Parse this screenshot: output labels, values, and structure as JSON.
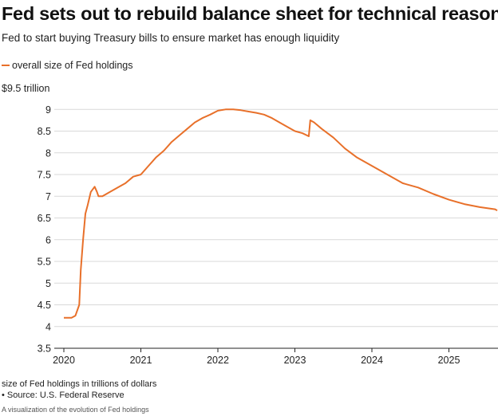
{
  "title": "Fed sets out to rebuild balance sheet for technical reasons",
  "subtitle": "Fed to start buying Treasury bills to ensure market has enough liquidity",
  "legend_label": "overall size of Fed holdings",
  "y_top_label": "$9.5 trillion",
  "note": "size of Fed holdings in trillions of dollars",
  "source": "• Source: U.S. Federal Reserve",
  "caption": "A visualization of the evolution of Fed holdings",
  "colors": {
    "series": "#e8702a",
    "grid": "#d9d9d9",
    "axis": "#222222"
  },
  "chart_data": {
    "type": "line",
    "title": "Fed sets out to rebuild balance sheet for technical reasons",
    "ylabel": "size of Fed holdings in trillions of dollars",
    "ylim": [
      3.5,
      9.5
    ],
    "xlim": [
      2019.95,
      2025.75
    ],
    "yticks": [
      "3.5",
      "4",
      "4.5",
      "5",
      "5.5",
      "6",
      "6.5",
      "7",
      "7.5",
      "8",
      "8.5",
      "9"
    ],
    "xticks": [
      "2020",
      "2021",
      "2022",
      "2023",
      "2024",
      "2025"
    ],
    "series": [
      {
        "name": "overall size of Fed holdings",
        "x": [
          2020.0,
          2020.1,
          2020.15,
          2020.2,
          2020.22,
          2020.25,
          2020.28,
          2020.31,
          2020.35,
          2020.4,
          2020.43,
          2020.45,
          2020.5,
          2020.55,
          2020.6,
          2020.7,
          2020.8,
          2020.9,
          2021.0,
          2021.1,
          2021.2,
          2021.3,
          2021.4,
          2021.5,
          2021.6,
          2021.7,
          2021.8,
          2021.9,
          2022.0,
          2022.1,
          2022.2,
          2022.3,
          2022.4,
          2022.5,
          2022.6,
          2022.7,
          2022.8,
          2022.9,
          2023.0,
          2023.1,
          2023.18,
          2023.2,
          2023.25,
          2023.35,
          2023.5,
          2023.65,
          2023.8,
          2024.0,
          2024.2,
          2024.4,
          2024.6,
          2024.8,
          2025.0,
          2025.2,
          2025.4,
          2025.6,
          2025.75
        ],
        "values": [
          4.2,
          4.2,
          4.25,
          4.5,
          5.3,
          6.0,
          6.6,
          6.8,
          7.1,
          7.22,
          7.1,
          7.0,
          7.0,
          7.05,
          7.1,
          7.2,
          7.3,
          7.45,
          7.5,
          7.7,
          7.9,
          8.05,
          8.25,
          8.4,
          8.55,
          8.7,
          8.8,
          8.88,
          8.97,
          9.0,
          9.0,
          8.98,
          8.95,
          8.92,
          8.88,
          8.8,
          8.7,
          8.6,
          8.5,
          8.45,
          8.38,
          8.75,
          8.7,
          8.55,
          8.35,
          8.1,
          7.9,
          7.7,
          7.5,
          7.3,
          7.2,
          7.05,
          6.92,
          6.82,
          6.75,
          6.7,
          6.67
        ]
      }
    ]
  }
}
